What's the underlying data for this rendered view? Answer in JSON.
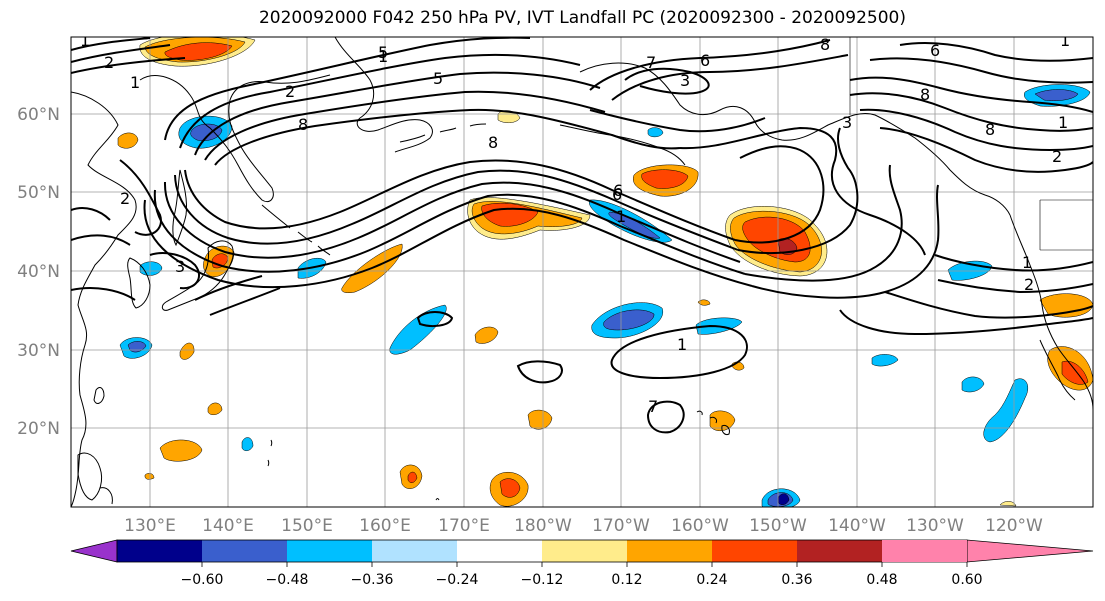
{
  "title": "2020092000 F042 250 hPa PV, IVT Landfall PC (2020092300 - 2020092500)",
  "lat_labels": [
    "60°N",
    "50°N",
    "40°N",
    "30°N",
    "20°N"
  ],
  "lon_labels": [
    "130°E",
    "140°E",
    "150°E",
    "160°E",
    "170°E",
    "180°W",
    "170°W",
    "160°W",
    "150°W",
    "140°W",
    "130°W",
    "120°W"
  ],
  "colorbar": {
    "colors": [
      "#9932CC",
      "#00008B",
      "#3A5FCD",
      "#00BFFF",
      "#B0E2FF",
      "#FFFFFF",
      "#FFEC8B",
      "#FFA500",
      "#FF4500",
      "#B22222",
      "#FF82AB"
    ],
    "labels": [
      "−0.60",
      "−0.48",
      "−0.36",
      "−0.24",
      "−0.12",
      "0.12",
      "0.24",
      "0.36",
      "0.48",
      "0.60"
    ]
  },
  "contour_labels": [
    "1",
    "2",
    "5",
    "8",
    "6",
    "3",
    "8",
    "2",
    "8",
    "6",
    "8",
    "5",
    "3",
    "1",
    "6",
    "7",
    "1",
    "2",
    "3",
    "1",
    "1",
    "1",
    "2",
    "6",
    "8",
    "1",
    "2",
    "1",
    "7"
  ]
}
